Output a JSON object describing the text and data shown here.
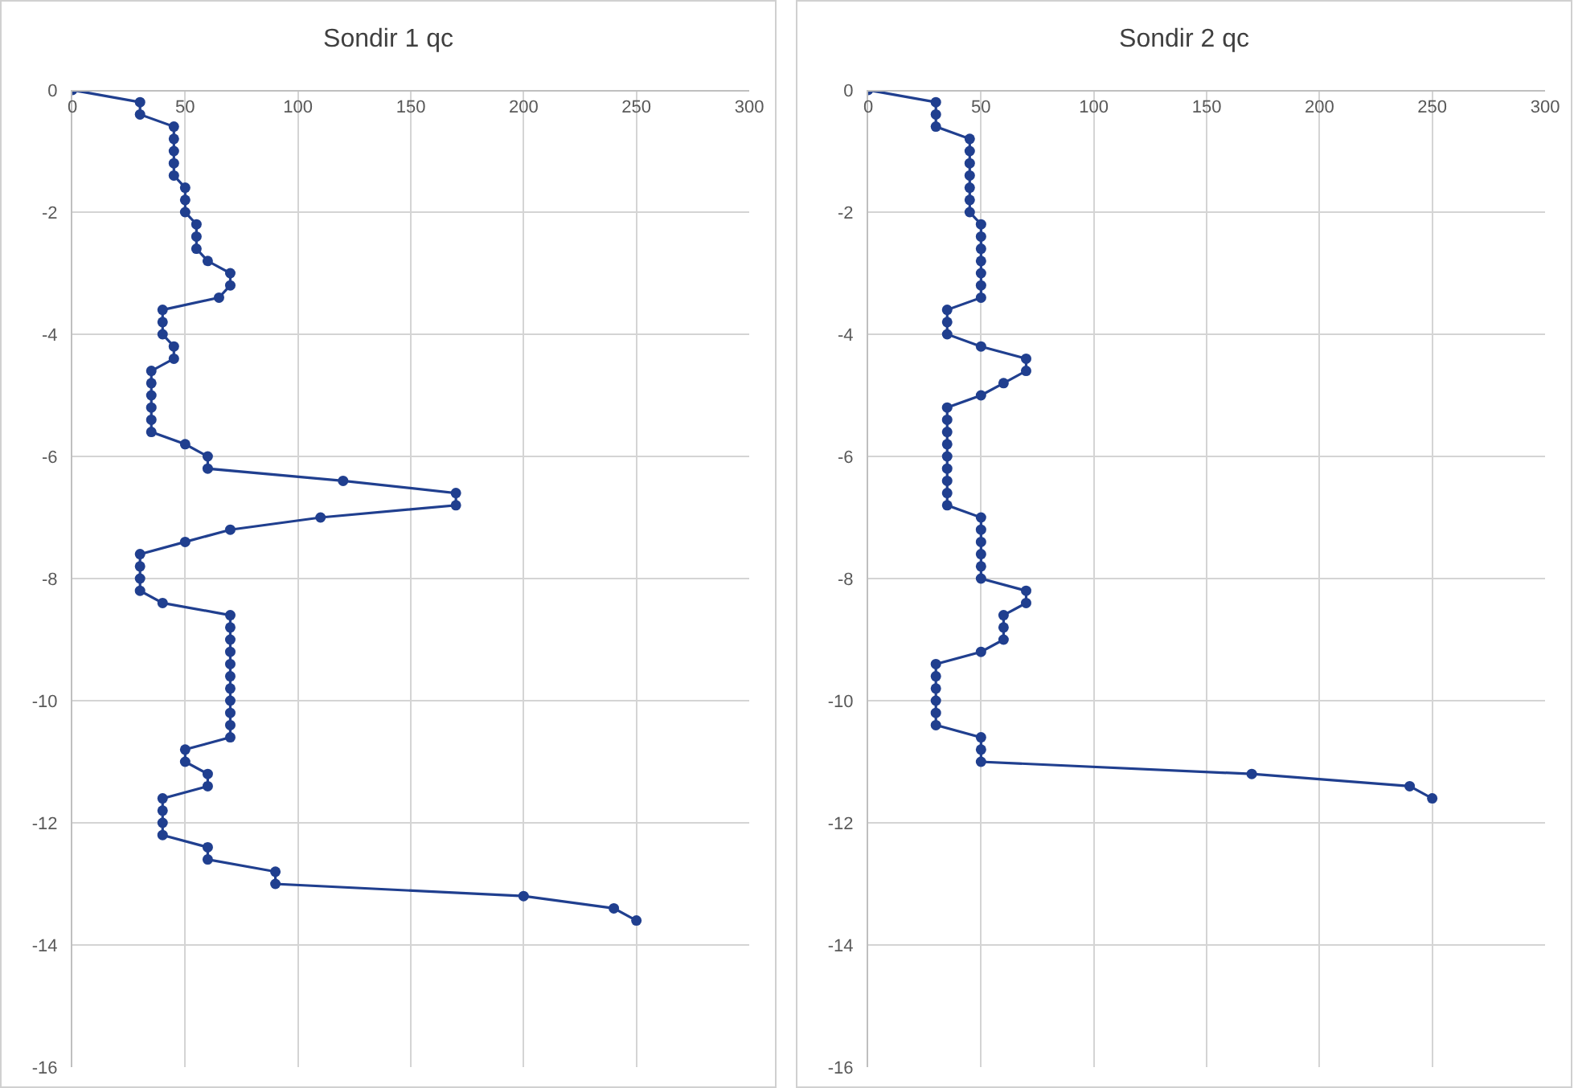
{
  "chart_data": [
    {
      "type": "line",
      "title": "Sondir 1 qc",
      "xlim": [
        0,
        300
      ],
      "xticks": [
        0,
        50,
        100,
        150,
        200,
        250,
        300
      ],
      "ylim": [
        -16,
        0
      ],
      "yticks": [
        -16,
        -14,
        -12,
        -10,
        -8,
        -6,
        -4,
        -2,
        0
      ],
      "grid": true,
      "marker": "circle",
      "series": [
        {
          "color": "#203f8f",
          "x": [
            0,
            30,
            30,
            45,
            45,
            45,
            45,
            45,
            50,
            50,
            50,
            55,
            55,
            55,
            60,
            70,
            70,
            65,
            40,
            40,
            40,
            45,
            45,
            35,
            35,
            35,
            35,
            35,
            35,
            50,
            60,
            60,
            120,
            170,
            170,
            110,
            70,
            50,
            30,
            30,
            30,
            30,
            40,
            70,
            70,
            70,
            70,
            70,
            70,
            70,
            70,
            70,
            70,
            70,
            50,
            50,
            60,
            60,
            40,
            40,
            40,
            40,
            60,
            60,
            90,
            90,
            200,
            240,
            250
          ],
          "values": [
            0,
            -0.2,
            -0.4,
            -0.6,
            -0.8,
            -1.0,
            -1.2,
            -1.4,
            -1.6,
            -1.8,
            -2.0,
            -2.2,
            -2.4,
            -2.6,
            -2.8,
            -3.0,
            -3.2,
            -3.4,
            -3.6,
            -3.8,
            -4.0,
            -4.2,
            -4.4,
            -4.6,
            -4.8,
            -5.0,
            -5.2,
            -5.4,
            -5.6,
            -5.8,
            -6.0,
            -6.2,
            -6.4,
            -6.6,
            -6.8,
            -7.0,
            -7.2,
            -7.4,
            -7.6,
            -7.8,
            -8.0,
            -8.2,
            -8.4,
            -8.6,
            -8.8,
            -9.0,
            -9.2,
            -9.4,
            -9.6,
            -9.8,
            -10.0,
            -10.2,
            -10.4,
            -10.6,
            -10.8,
            -11.0,
            -11.2,
            -11.4,
            -11.6,
            -11.8,
            -12.0,
            -12.2,
            -12.4,
            -12.6,
            -12.8,
            -13.0,
            -13.2,
            -13.4,
            -13.6
          ]
        }
      ]
    },
    {
      "type": "line",
      "title": "Sondir 2 qc",
      "xlim": [
        0,
        300
      ],
      "xticks": [
        0,
        50,
        100,
        150,
        200,
        250,
        300
      ],
      "ylim": [
        -16,
        0
      ],
      "yticks": [
        -16,
        -14,
        -12,
        -10,
        -8,
        -6,
        -4,
        -2,
        0
      ],
      "grid": true,
      "marker": "circle",
      "series": [
        {
          "color": "#203f8f",
          "x": [
            0,
            30,
            30,
            30,
            45,
            45,
            45,
            45,
            45,
            45,
            45,
            50,
            50,
            50,
            50,
            50,
            50,
            50,
            35,
            35,
            35,
            50,
            70,
            70,
            60,
            50,
            35,
            35,
            35,
            35,
            35,
            35,
            35,
            35,
            35,
            50,
            50,
            50,
            50,
            50,
            50,
            70,
            70,
            60,
            60,
            60,
            50,
            30,
            30,
            30,
            30,
            30,
            30,
            50,
            50,
            50,
            170,
            240,
            250
          ],
          "values": [
            0,
            -0.2,
            -0.4,
            -0.6,
            -0.8,
            -1.0,
            -1.2,
            -1.4,
            -1.6,
            -1.8,
            -2.0,
            -2.2,
            -2.4,
            -2.6,
            -2.8,
            -3.0,
            -3.2,
            -3.4,
            -3.6,
            -3.8,
            -4.0,
            -4.2,
            -4.4,
            -4.6,
            -4.8,
            -5.0,
            -5.2,
            -5.4,
            -5.6,
            -5.8,
            -6.0,
            -6.2,
            -6.4,
            -6.6,
            -6.8,
            -7.0,
            -7.2,
            -7.4,
            -7.6,
            -7.8,
            -8.0,
            -8.2,
            -8.4,
            -8.6,
            -8.8,
            -9.0,
            -9.2,
            -9.4,
            -9.6,
            -9.8,
            -10.0,
            -10.2,
            -10.4,
            -10.6,
            -10.8,
            -11.0,
            -11.2,
            -11.4,
            -11.6
          ]
        }
      ]
    }
  ]
}
